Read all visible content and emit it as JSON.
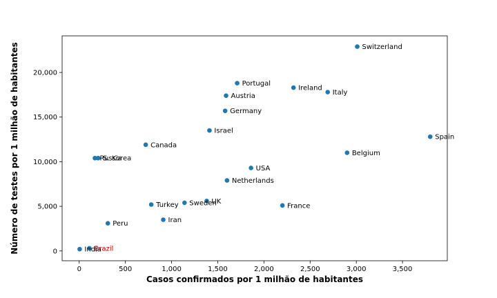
{
  "chart_data": {
    "type": "scatter",
    "title": "",
    "xlabel": "Casos confirmados por 1 milhão de habitantes",
    "ylabel": "Número de testes por 1 milhão de habitantes",
    "xlim": [
      -185,
      3985
    ],
    "ylim": [
      -1100,
      24100
    ],
    "xticks": [
      0,
      500,
      1000,
      1500,
      2000,
      2500,
      3000,
      3500
    ],
    "xtick_labels": [
      "0",
      "500",
      "1,000",
      "1,500",
      "2,000",
      "2,500",
      "3,000",
      "3,500"
    ],
    "yticks": [
      0,
      5000,
      10000,
      15000,
      20000
    ],
    "ytick_labels": [
      "0",
      "5,000",
      "10,000",
      "15,000",
      "20,000"
    ],
    "grid": false,
    "colors": {
      "point": "#1f77b4",
      "highlight_label": "#cc0000",
      "label": "#000000"
    },
    "points": [
      {
        "label": "Switzerland",
        "x": 3010,
        "y": 22900
      },
      {
        "label": "Portugal",
        "x": 1710,
        "y": 18800
      },
      {
        "label": "Ireland",
        "x": 2320,
        "y": 18300
      },
      {
        "label": "Italy",
        "x": 2690,
        "y": 17800
      },
      {
        "label": "Austria",
        "x": 1590,
        "y": 17400
      },
      {
        "label": "Germany",
        "x": 1580,
        "y": 15700
      },
      {
        "label": "Israel",
        "x": 1410,
        "y": 13500
      },
      {
        "label": "Spain",
        "x": 3800,
        "y": 12800
      },
      {
        "label": "Canada",
        "x": 720,
        "y": 11900
      },
      {
        "label": "Belgium",
        "x": 2900,
        "y": 11000
      },
      {
        "label": "Russia",
        "x": 170,
        "y": 10400
      },
      {
        "label": "S. Korea",
        "x": 205,
        "y": 10400
      },
      {
        "label": "USA",
        "x": 1860,
        "y": 9300
      },
      {
        "label": "Netherlands",
        "x": 1600,
        "y": 7900
      },
      {
        "label": "UK",
        "x": 1380,
        "y": 5600
      },
      {
        "label": "Sweden",
        "x": 1140,
        "y": 5400
      },
      {
        "label": "Turkey",
        "x": 780,
        "y": 5200
      },
      {
        "label": "France",
        "x": 2200,
        "y": 5100
      },
      {
        "label": "Iran",
        "x": 910,
        "y": 3500
      },
      {
        "label": "Peru",
        "x": 310,
        "y": 3100
      },
      {
        "label": "Brazil",
        "x": 110,
        "y": 300,
        "highlight": true
      },
      {
        "label": "India",
        "x": 5,
        "y": 200
      }
    ]
  }
}
